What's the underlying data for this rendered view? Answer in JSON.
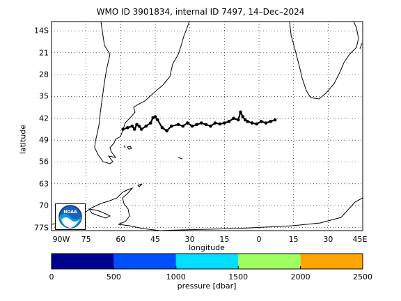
{
  "title": "WMO ID 3901834, internal ID 7497, 14–Dec–2024",
  "axes": {
    "xlabel": "longitude",
    "ylabel": "latitude",
    "x_ticks": [
      "90W",
      "75",
      "60",
      "45",
      "30",
      "15",
      "0",
      "15",
      "30",
      "45E"
    ],
    "y_ticks": [
      "14S",
      "21",
      "28",
      "35",
      "42",
      "49",
      "56",
      "63",
      "70",
      "77S"
    ],
    "grid": true
  },
  "colorbar": {
    "label": "pressure [dbar]",
    "ticks": [
      "0",
      "500",
      "1000",
      "1500",
      "2000",
      "2500"
    ],
    "colors": [
      "#00008f",
      "#0050ff",
      "#00dfff",
      "#9fff60",
      "#ffa500"
    ]
  },
  "logo": {
    "icon": "noaa-logo-icon",
    "text": "NOAA"
  },
  "chart_data": {
    "type": "scatter",
    "title": "WMO ID 3901834, internal ID 7497, 14–Dec–2024",
    "xlabel": "longitude",
    "ylabel": "latitude",
    "xlim": [
      -90,
      45
    ],
    "ylim": [
      -78,
      -11
    ],
    "series": [
      {
        "marker_color": "#000000",
        "lon": [
          -59,
          -57,
          -55,
          -54,
          -53,
          -52,
          -51,
          -49,
          -47,
          -46,
          -45,
          -44,
          -42,
          -40,
          -38,
          -35,
          -33,
          -31,
          -29,
          -27,
          -25,
          -23,
          -21,
          -19,
          -17,
          -15,
          -13,
          -11,
          -9,
          -8,
          -7,
          -6,
          -5,
          -3,
          -1,
          1,
          3,
          5,
          7
        ],
        "lat": [
          -45.5,
          -45,
          -44.5,
          -45.5,
          -44,
          -44.5,
          -45.5,
          -44.5,
          -43.5,
          -41.8,
          -41.5,
          -42.5,
          -45,
          -46,
          -44.5,
          -44,
          -44.5,
          -43.5,
          -44.5,
          -44,
          -43.5,
          -44,
          -44.5,
          -43.5,
          -43.8,
          -43.5,
          -43,
          -42,
          -42.5,
          -40,
          -41.5,
          -42.5,
          -43,
          -43.5,
          -43.8,
          -43,
          -43.5,
          -43,
          -42.5
        ]
      }
    ]
  }
}
